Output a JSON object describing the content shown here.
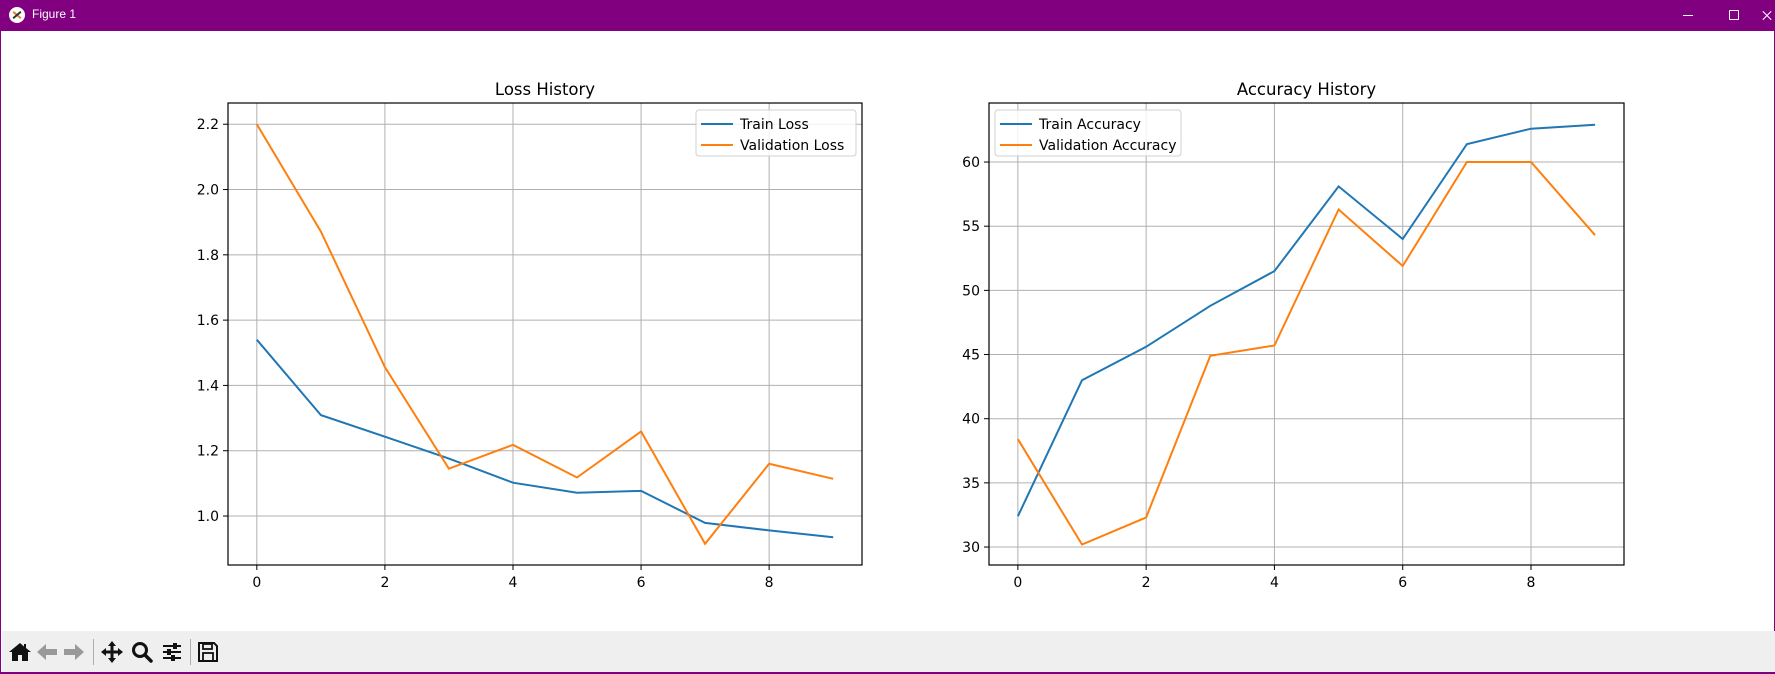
{
  "window": {
    "title": "Figure 1",
    "frame_color": "#800080"
  },
  "toolbar": {
    "buttons": [
      {
        "name": "home",
        "icon": "home-icon"
      },
      {
        "name": "back",
        "icon": "arrow-left-icon"
      },
      {
        "name": "forward",
        "icon": "arrow-right-icon"
      },
      {
        "name": "pan",
        "icon": "move-icon"
      },
      {
        "name": "zoom",
        "icon": "magnifier-icon"
      },
      {
        "name": "configure-subplots",
        "icon": "sliders-icon"
      },
      {
        "name": "save",
        "icon": "floppy-disk-icon"
      }
    ]
  },
  "chart_data": [
    {
      "type": "line",
      "title": "Loss History",
      "xlabel": "",
      "ylabel": "",
      "x": [
        0,
        1,
        2,
        3,
        4,
        5,
        6,
        7,
        8,
        9
      ],
      "xlim": [
        -0.45,
        9.45
      ],
      "ylim": [
        0.85,
        2.265
      ],
      "xticks": [
        0,
        2,
        4,
        6,
        8
      ],
      "xtick_labels": [
        "0",
        "2",
        "4",
        "6",
        "8"
      ],
      "yticks": [
        1.0,
        1.2,
        1.4,
        1.6,
        1.8,
        2.0,
        2.2
      ],
      "ytick_labels": [
        "1.0",
        "1.2",
        "1.4",
        "1.6",
        "1.8",
        "2.0",
        "2.2"
      ],
      "grid": true,
      "legend_position": "upper right",
      "series": [
        {
          "name": "Train Loss",
          "color": "#1f77b4",
          "values": [
            1.54,
            1.309,
            1.243,
            1.176,
            1.102,
            1.071,
            1.077,
            0.979,
            0.956,
            0.935
          ]
        },
        {
          "name": "Validation Loss",
          "color": "#ff7f0e",
          "values": [
            2.2,
            1.871,
            1.456,
            1.145,
            1.218,
            1.118,
            1.259,
            0.915,
            1.16,
            1.114
          ]
        }
      ]
    },
    {
      "type": "line",
      "title": "Accuracy History",
      "xlabel": "",
      "ylabel": "",
      "x": [
        0,
        1,
        2,
        3,
        4,
        5,
        6,
        7,
        8,
        9
      ],
      "xlim": [
        -0.45,
        9.45
      ],
      "ylim": [
        28.6,
        64.6
      ],
      "xticks": [
        0,
        2,
        4,
        6,
        8
      ],
      "xtick_labels": [
        "0",
        "2",
        "4",
        "6",
        "8"
      ],
      "yticks": [
        30,
        35,
        40,
        45,
        50,
        55,
        60
      ],
      "ytick_labels": [
        "30",
        "35",
        "40",
        "45",
        "50",
        "55",
        "60"
      ],
      "grid": true,
      "legend_position": "upper left",
      "series": [
        {
          "name": "Train Accuracy",
          "color": "#1f77b4",
          "values": [
            32.4,
            43.0,
            45.6,
            48.8,
            51.5,
            58.1,
            54.0,
            61.4,
            62.6,
            62.9
          ]
        },
        {
          "name": "Validation Accuracy",
          "color": "#ff7f0e",
          "values": [
            38.4,
            30.2,
            32.3,
            44.9,
            45.7,
            56.3,
            51.9,
            60.0,
            60.0,
            54.3
          ]
        }
      ]
    }
  ]
}
